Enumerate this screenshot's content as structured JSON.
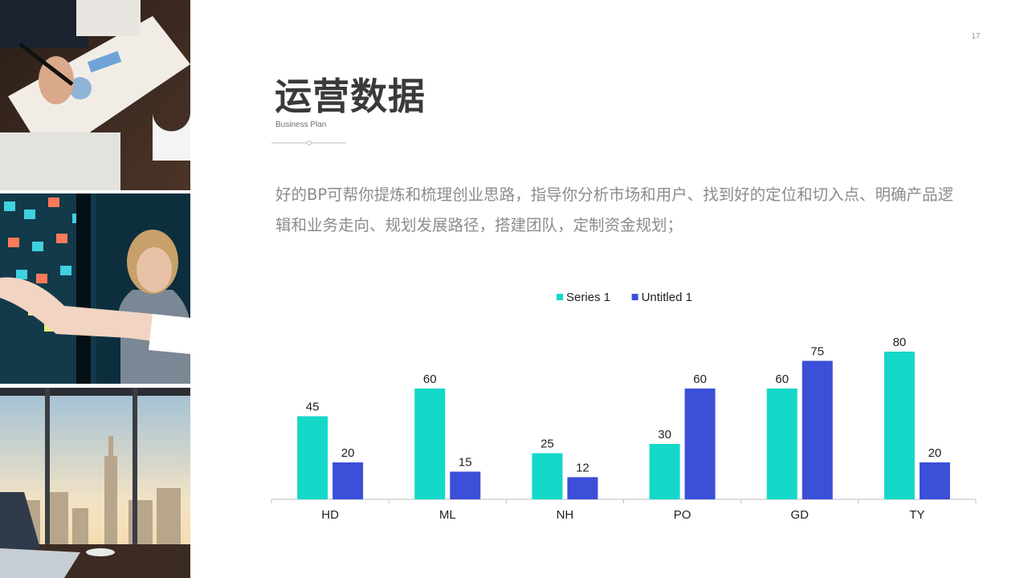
{
  "page": {
    "number": "17",
    "title": "运营数据",
    "subtitle": "Business Plan",
    "body": "好的BP可帮你提炼和梳理创业思路，指导你分析市场和用户、找到好的定位和切入点、明确产品逻辑和业务走向、规划发展路径，搭建团队，定制资金规划；"
  },
  "photos": [
    {
      "name": "business-meeting-photo"
    },
    {
      "name": "sticky-notes-photo"
    },
    {
      "name": "city-office-photo"
    }
  ],
  "colors": {
    "series1": "#14d8c8",
    "series2": "#3b4fd8",
    "text": "#3a3a3a",
    "muted": "#8c8c8c",
    "axis": "#bfbfbf"
  },
  "chart_data": {
    "type": "bar",
    "categories": [
      "HD",
      "ML",
      "NH",
      "PO",
      "GD",
      "TY"
    ],
    "series": [
      {
        "name": "Series 1",
        "values": [
          45,
          60,
          25,
          30,
          60,
          80
        ]
      },
      {
        "name": "Untitled 1",
        "values": [
          20,
          15,
          12,
          60,
          75,
          20
        ]
      }
    ],
    "title": "",
    "xlabel": "",
    "ylabel": "",
    "ylim": [
      0,
      90
    ],
    "legend": "top-center",
    "grid": false,
    "data_labels": true
  }
}
